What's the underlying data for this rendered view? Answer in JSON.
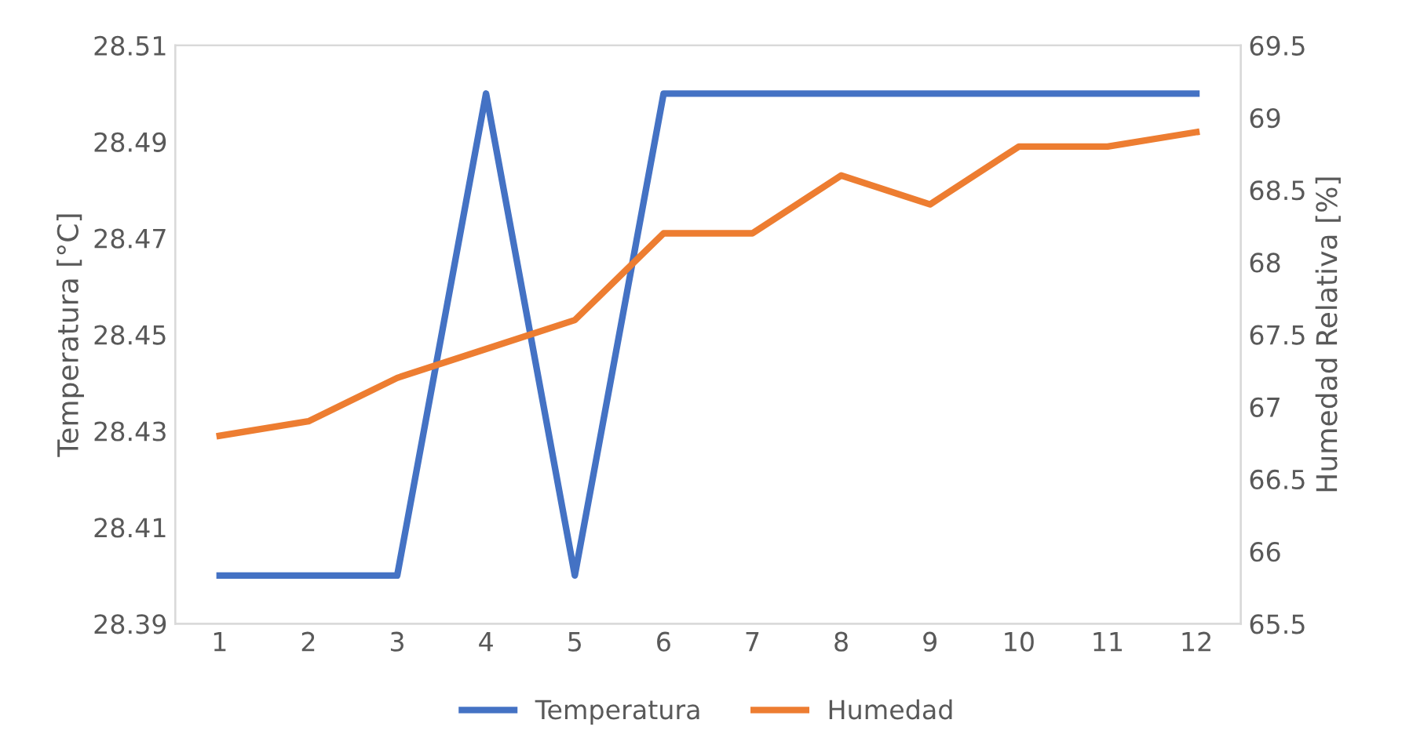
{
  "chart_data": {
    "type": "line",
    "categories": [
      "1",
      "2",
      "3",
      "4",
      "5",
      "6",
      "7",
      "8",
      "9",
      "10",
      "11",
      "12"
    ],
    "ylabel": "Temperatura [°C]",
    "y2label": "Humedad Relativa [%]",
    "ylim": [
      28.39,
      28.51
    ],
    "yticks": [
      {
        "value": 28.39,
        "label": "28.39"
      },
      {
        "value": 28.41,
        "label": "28.41"
      },
      {
        "value": 28.43,
        "label": "28.43"
      },
      {
        "value": 28.45,
        "label": "28.45"
      },
      {
        "value": 28.47,
        "label": "28.47"
      },
      {
        "value": 28.49,
        "label": "28.49"
      },
      {
        "value": 28.51,
        "label": "28.51"
      }
    ],
    "y2lim": [
      65.5,
      69.5
    ],
    "y2ticks": [
      65.5,
      66,
      66.5,
      67,
      67.5,
      68,
      68.5,
      69,
      69.5
    ],
    "series": [
      {
        "name": "Temperatura",
        "color": "#4472c4",
        "values": [
          28.4,
          28.4,
          28.4,
          28.5,
          28.4,
          28.5,
          28.5,
          28.5,
          28.5,
          28.5,
          28.5,
          28.5
        ]
      },
      {
        "name": "Humedad",
        "color": "#ed7d31",
        "axis": "y2",
        "values": [
          66.8,
          66.9,
          67.2,
          67.4,
          67.6,
          68.2,
          68.2,
          68.6,
          68.4,
          68.8,
          68.8,
          68.9
        ]
      }
    ],
    "legend": "bottom",
    "grid": false,
    "line_style": "solid",
    "marker": "none"
  }
}
